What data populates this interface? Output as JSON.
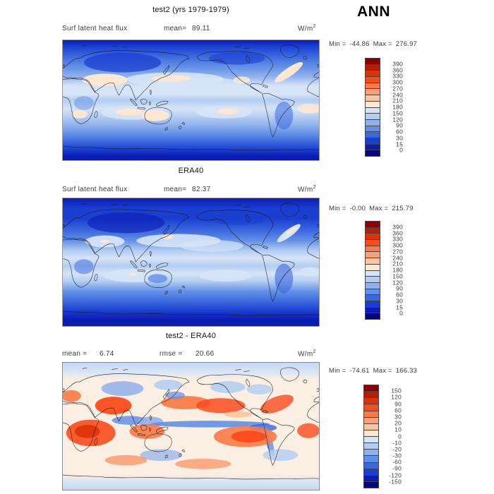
{
  "page": {
    "season_label": "ANN"
  },
  "palette": [
    "#8B0000",
    "#B21E06",
    "#DB3208",
    "#FA4B1C",
    "#FB7A46",
    "#FAA077",
    "#FBC59F",
    "#FDE7D2",
    "#D6E4F7",
    "#B3CDF2",
    "#8FB0EC",
    "#6290E6",
    "#3A67DE",
    "#1A3FD0",
    "#0A1CB4",
    "#04067F"
  ],
  "panels": [
    {
      "title": "test2 (yrs 1979-1979)",
      "field_label": "Surf latent heat flux",
      "mean_label": "mean=",
      "mean_value": "89.11",
      "units": "W/m",
      "units_sup": "2",
      "min_label": "Min =",
      "min_value": "-44.86",
      "max_label": "Max =",
      "max_value": "276.97",
      "colorbar_ticks": [
        "390",
        "360",
        "330",
        "300",
        "270",
        "240",
        "210",
        "180",
        "150",
        "120",
        "90",
        "60",
        "30",
        "15",
        "0"
      ]
    },
    {
      "title": "ERA40",
      "field_label": "Surf latent heat flux",
      "mean_label": "mean=",
      "mean_value": "82.37",
      "units": "W/m",
      "units_sup": "2",
      "min_label": "Min =",
      "min_value": "-0.00",
      "max_label": "Max =",
      "max_value": "215.79",
      "colorbar_ticks": [
        "390",
        "360",
        "330",
        "300",
        "270",
        "240",
        "210",
        "180",
        "150",
        "120",
        "90",
        "60",
        "30",
        "15",
        "0"
      ]
    },
    {
      "title": "test2 - ERA40",
      "mean_label": "mean =",
      "mean_value": "6.74",
      "rmse_label": "rmse =",
      "rmse_value": "20.66",
      "units": "W/m",
      "units_sup": "2",
      "min_label": "Min =",
      "min_value": "-74.61",
      "max_label": "Max =",
      "max_value": "166.33",
      "colorbar_ticks": [
        "150",
        "120",
        "90",
        "60",
        "30",
        "20",
        "10",
        "0",
        "-10",
        "-20",
        "-30",
        "-60",
        "-90",
        "-120",
        "-150"
      ]
    }
  ],
  "chart_data": [
    {
      "type": "heatmap",
      "title": "test2 (yrs 1979-1979)",
      "variable": "Surf latent heat flux",
      "units": "W/m^2",
      "season": "ANN",
      "projection": "global latitude-longitude map (Pacific-centered)",
      "mean": 89.11,
      "min": -44.86,
      "max": 276.97,
      "contour_levels": [
        0,
        15,
        30,
        60,
        90,
        120,
        150,
        180,
        210,
        240,
        270,
        300,
        330,
        360,
        390
      ],
      "legend_position": "right",
      "palette_direction": "blue (low) to red (high)"
    },
    {
      "type": "heatmap",
      "title": "ERA40",
      "variable": "Surf latent heat flux",
      "units": "W/m^2",
      "season": "ANN",
      "projection": "global latitude-longitude map (Pacific-centered)",
      "mean": 82.37,
      "min": -0.0,
      "max": 215.79,
      "contour_levels": [
        0,
        15,
        30,
        60,
        90,
        120,
        150,
        180,
        210,
        240,
        270,
        300,
        330,
        360,
        390
      ],
      "legend_position": "right",
      "palette_direction": "blue (low) to red (high)"
    },
    {
      "type": "heatmap",
      "title": "test2 - ERA40",
      "variable": "Surf latent heat flux difference",
      "units": "W/m^2",
      "season": "ANN",
      "projection": "global latitude-longitude map (Pacific-centered)",
      "mean": 6.74,
      "rmse": 20.66,
      "min": -74.61,
      "max": 166.33,
      "contour_levels": [
        -150,
        -120,
        -90,
        -60,
        -30,
        -20,
        -10,
        0,
        10,
        20,
        30,
        60,
        90,
        120,
        150
      ],
      "legend_position": "right",
      "palette_direction": "blue (negative) to red (positive)"
    }
  ]
}
